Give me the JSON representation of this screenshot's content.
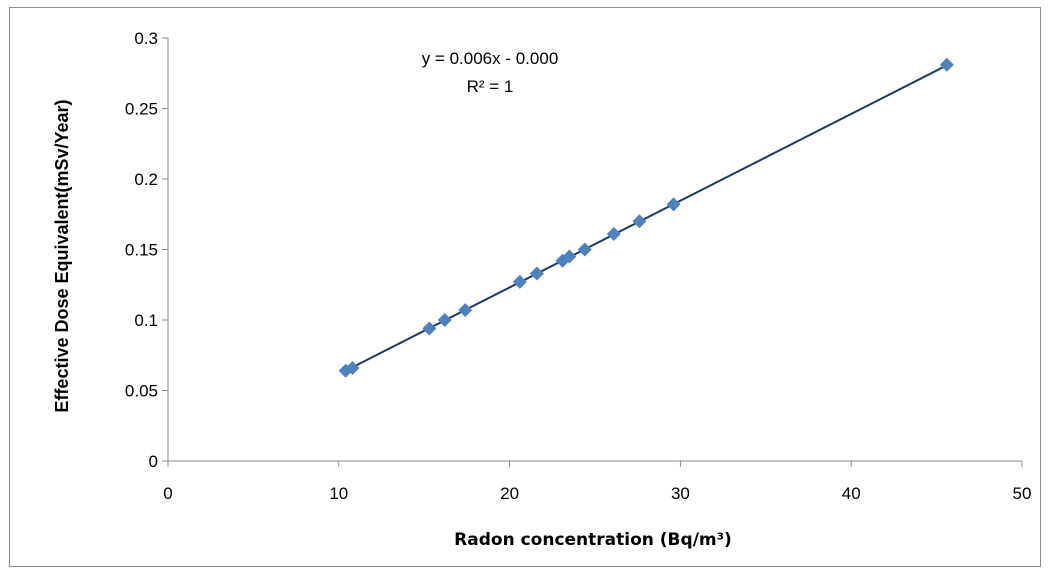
{
  "chart_data": {
    "type": "scatter",
    "title": "",
    "xlabel": "Radon concentration (Bq/m³)",
    "ylabel": "Effective Dose Equivalent(mSv/Year)",
    "xlim": [
      0,
      50
    ],
    "ylim": [
      0,
      0.3
    ],
    "x_ticks": [
      "0",
      "10",
      "20",
      "30",
      "40",
      "50"
    ],
    "y_ticks": [
      "0",
      "0.05",
      "0.1",
      "0.15",
      "0.2",
      "0.25",
      "0.3"
    ],
    "grid": false,
    "legend": "none",
    "marker_color": "#4f81bd",
    "trendline_color": "#1f3864",
    "trendline": {
      "slope": 0.006154,
      "intercept": 0.0,
      "equation": "y = 0.006x - 0.000",
      "r_squared": "R² = 1"
    },
    "points": [
      {
        "x": 10.4,
        "y": 0.064
      },
      {
        "x": 10.8,
        "y": 0.066
      },
      {
        "x": 15.3,
        "y": 0.094
      },
      {
        "x": 16.2,
        "y": 0.1
      },
      {
        "x": 17.4,
        "y": 0.107
      },
      {
        "x": 20.6,
        "y": 0.127
      },
      {
        "x": 21.6,
        "y": 0.133
      },
      {
        "x": 23.1,
        "y": 0.142
      },
      {
        "x": 23.5,
        "y": 0.145
      },
      {
        "x": 24.4,
        "y": 0.15
      },
      {
        "x": 26.1,
        "y": 0.161
      },
      {
        "x": 27.6,
        "y": 0.17
      },
      {
        "x": 29.6,
        "y": 0.182
      },
      {
        "x": 45.6,
        "y": 0.281
      }
    ]
  }
}
